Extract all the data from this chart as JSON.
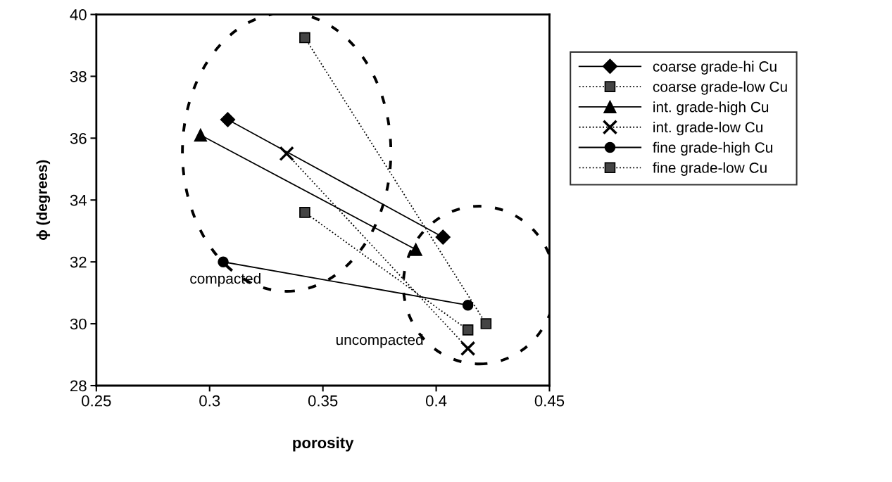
{
  "chart_data": {
    "type": "line",
    "xlabel": "porosity",
    "ylabel": "ϕ (degrees)",
    "xlim": [
      0.25,
      0.45
    ],
    "xticks": [
      0.25,
      0.3,
      0.35,
      0.4,
      0.45
    ],
    "ylim": [
      28,
      40
    ],
    "yticks": [
      28,
      30,
      32,
      34,
      36,
      38,
      40
    ],
    "grid": false,
    "legend": "right",
    "series": [
      {
        "name": "coarse grade-hi Cu",
        "color": "#000000",
        "x": [
          0.308,
          0.403
        ],
        "values": [
          36.6,
          32.8
        ],
        "marker": "diamond",
        "line_style": "solid"
      },
      {
        "name": "coarse grade-low Cu",
        "color": "#000000",
        "x": [
          0.342,
          0.422
        ],
        "values": [
          39.25,
          30.0
        ],
        "marker": "square",
        "line_style": "dotted"
      },
      {
        "name": "int. grade-high Cu",
        "color": "#000000",
        "x": [
          0.296,
          0.391
        ],
        "values": [
          36.1,
          32.4
        ],
        "marker": "triangle",
        "line_style": "solid"
      },
      {
        "name": "int. grade-low Cu",
        "color": "#000000",
        "x": [
          0.334,
          0.414
        ],
        "values": [
          35.5,
          29.2
        ],
        "marker": "cross",
        "line_style": "dotted"
      },
      {
        "name": "fine grade-high Cu",
        "color": "#000000",
        "x": [
          0.306,
          0.414
        ],
        "values": [
          32.0,
          30.6
        ],
        "marker": "circle",
        "line_style": "solid"
      },
      {
        "name": "fine grade-low Cu",
        "color": "#000000",
        "x": [
          0.342,
          0.414
        ],
        "values": [
          33.6,
          29.8
        ],
        "marker": "square",
        "line_style": "dotted"
      }
    ],
    "annotations": [
      "compacted",
      "uncompacted"
    ]
  }
}
